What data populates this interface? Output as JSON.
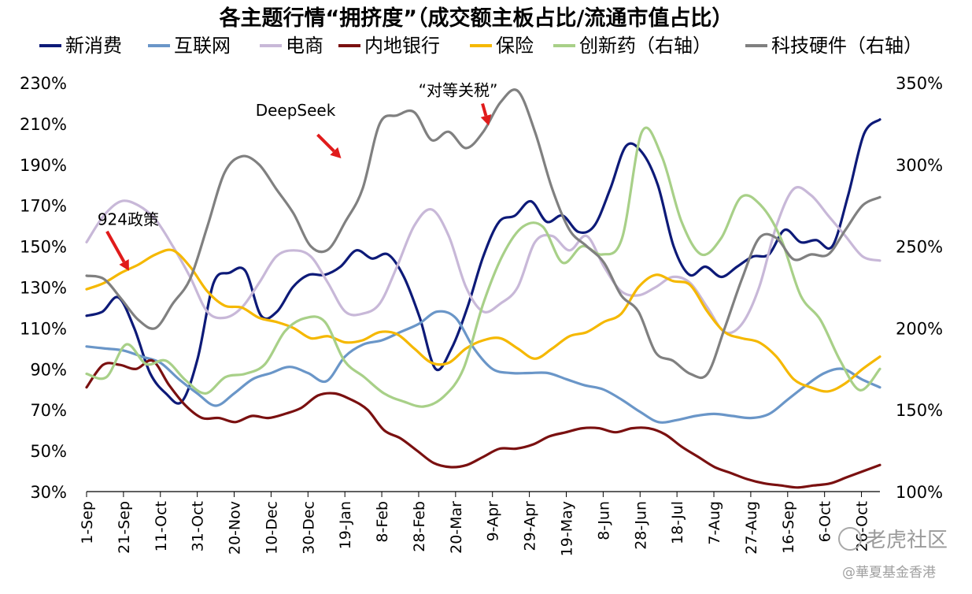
{
  "chart_data": {
    "type": "line",
    "title": "各主题行情“拥挤度”（成交额主板占比/流通市值占比）",
    "xlabel": "",
    "ylabel_left": "",
    "ylabel_right": "",
    "ylim_left": [
      30,
      230
    ],
    "ylim_right": [
      100,
      350
    ],
    "yticks_left": [
      "30%",
      "50%",
      "70%",
      "90%",
      "110%",
      "130%",
      "150%",
      "170%",
      "190%",
      "210%",
      "230%"
    ],
    "yticks_right": [
      "100%",
      "150%",
      "200%",
      "250%",
      "300%",
      "350%"
    ],
    "x_start": "2024-09-01",
    "x_end": "2025-11-05",
    "x_ticks": [
      "1-Sep",
      "21-Sep",
      "11-Oct",
      "31-Oct",
      "20-Nov",
      "10-Dec",
      "30-Dec",
      "19-Jan",
      "8-Feb",
      "28-Feb",
      "20-Mar",
      "9-Apr",
      "29-Apr",
      "19-May",
      "8-Jun",
      "28-Jun",
      "18-Jul",
      "7-Aug",
      "27-Aug",
      "16-Sep",
      "6-Oct",
      "26-Oct"
    ],
    "series": [
      {
        "name": "新消费",
        "color": "#0d1a78",
        "axis": "left",
        "values": [
          116,
          118,
          125,
          110,
          88,
          78,
          74,
          95,
          132,
          137,
          138,
          116,
          118,
          130,
          136,
          136,
          140,
          148,
          144,
          146,
          135,
          115,
          90,
          100,
          120,
          145,
          162,
          165,
          172,
          162,
          165,
          157,
          160,
          178,
          199,
          196,
          180,
          150,
          136,
          140,
          135,
          140,
          145,
          146,
          158,
          152,
          153,
          150,
          175,
          205,
          212
        ]
      },
      {
        "name": "互联网",
        "color": "#6a96c8",
        "axis": "left",
        "values": [
          101,
          100,
          99,
          96,
          93,
          85,
          78,
          72,
          78,
          85,
          88,
          91,
          88,
          84,
          96,
          102,
          104,
          108,
          112,
          118,
          115,
          100,
          90,
          88,
          88,
          88,
          85,
          82,
          80,
          75,
          69,
          64,
          65,
          67,
          68,
          67,
          66,
          68,
          75,
          82,
          88,
          90,
          85,
          81
        ]
      },
      {
        "name": "电商",
        "color": "#c8b8d8",
        "axis": "left",
        "values": [
          152,
          165,
          172,
          170,
          163,
          150,
          135,
          118,
          115,
          120,
          132,
          145,
          148,
          145,
          132,
          118,
          117,
          122,
          140,
          160,
          168,
          155,
          130,
          118,
          122,
          130,
          152,
          155,
          148,
          155,
          140,
          128,
          126,
          130,
          135,
          132,
          120,
          108,
          112,
          130,
          160,
          178,
          175,
          165,
          155,
          145,
          143
        ]
      },
      {
        "name": "内地银行",
        "color": "#7a1010",
        "axis": "left",
        "values": [
          81,
          92,
          92,
          90,
          94,
          82,
          72,
          66,
          66,
          64,
          67,
          66,
          68,
          71,
          77,
          78,
          75,
          70,
          60,
          56,
          50,
          44,
          42,
          43,
          47,
          51,
          51,
          53,
          57,
          59,
          61,
          61,
          59,
          61,
          61,
          58,
          52,
          47,
          42,
          39,
          36,
          34,
          33,
          32,
          33,
          34,
          37,
          40,
          43
        ]
      },
      {
        "name": "保险",
        "color": "#f5b800",
        "axis": "left",
        "values": [
          129,
          132,
          137,
          141,
          146,
          148,
          140,
          128,
          121,
          120,
          115,
          113,
          110,
          105,
          106,
          103,
          104,
          108,
          107,
          100,
          93,
          93,
          100,
          104,
          105,
          100,
          95,
          100,
          106,
          108,
          113,
          117,
          130,
          136,
          133,
          131,
          118,
          108,
          105,
          103,
          96,
          85,
          81,
          79,
          83,
          90,
          96
        ]
      },
      {
        "name": "创新药（右轴）",
        "color": "#a8d088",
        "axis": "right",
        "values": [
          172,
          170,
          190,
          178,
          180,
          168,
          160,
          170,
          172,
          178,
          198,
          206,
          204,
          180,
          170,
          160,
          155,
          152,
          158,
          175,
          215,
          245,
          262,
          262,
          240,
          250,
          245,
          255,
          320,
          305,
          265,
          245,
          255,
          280,
          275,
          255,
          220,
          205,
          180,
          162,
          175
        ]
      },
      {
        "name": "科技硬件（右轴）",
        "color": "#808080",
        "axis": "right",
        "values": [
          232,
          230,
          218,
          205,
          200,
          215,
          230,
          262,
          295,
          305,
          300,
          285,
          270,
          250,
          248,
          265,
          285,
          325,
          330,
          332,
          315,
          320,
          310,
          320,
          338,
          345,
          320,
          285,
          260,
          250,
          240,
          220,
          210,
          185,
          180,
          172,
          172,
          200,
          230,
          255,
          255,
          242,
          245,
          245,
          260,
          275,
          280
        ]
      }
    ],
    "annotations": [
      {
        "label": "924政策",
        "date": "2024-09-24",
        "value": 138
      },
      {
        "label": "DeepSeek",
        "date": "2025-01-17",
        "value": 193
      },
      {
        "label": "“对等关税”",
        "date": "2025-04-07",
        "value": 209
      }
    ]
  },
  "watermark": {
    "tiger": "老虎社区",
    "author": "@華夏基金香港"
  }
}
